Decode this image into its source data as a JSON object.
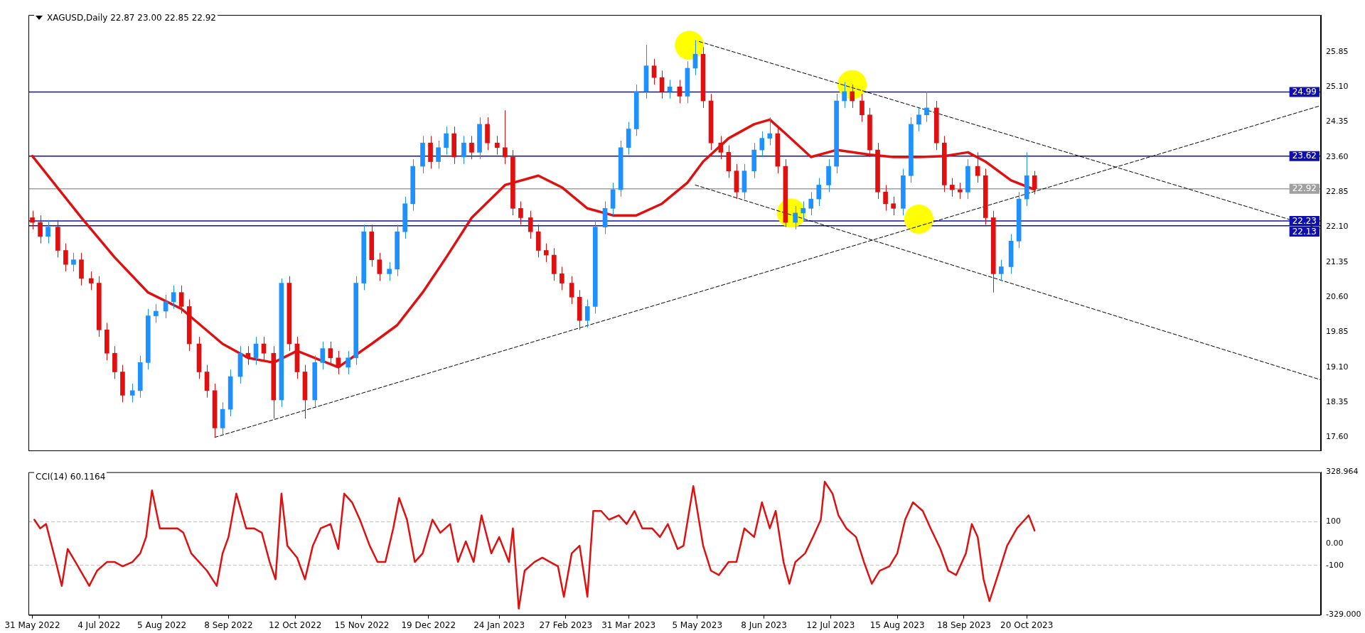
{
  "chart_data": [
    {
      "type": "candlestick",
      "title": "XAGUSD,Daily 22.87 23.00 22.85 22.92",
      "xlim": [
        "2022-05-29",
        "2024-03-18"
      ],
      "ylim": [
        17.32,
        26.64
      ],
      "tick_labels": "y",
      "yticks": [
        {
          "value": 17.6,
          "label": "17.60"
        },
        {
          "value": 18.35,
          "label": "18.35"
        },
        {
          "value": 19.1,
          "label": "19.10"
        },
        {
          "value": 19.85,
          "label": "19.85"
        },
        {
          "value": 20.6,
          "label": "20.60"
        },
        {
          "value": 21.35,
          "label": "21.35"
        },
        {
          "value": 22.1,
          "label": "22.10"
        },
        {
          "value": 22.85,
          "label": "22.85"
        },
        {
          "value": 23.6,
          "label": "23.60"
        },
        {
          "value": 24.35,
          "label": "24.35"
        },
        {
          "value": 25.1,
          "label": "25.10"
        },
        {
          "value": 25.85,
          "label": "25.85"
        }
      ],
      "ref_lines": [
        {
          "axis": "y",
          "value": 24.99,
          "label": "24.99",
          "color": "#1010b0"
        },
        {
          "axis": "y",
          "value": 23.62,
          "label": "23.62",
          "color": "#1010b0"
        },
        {
          "axis": "y",
          "value": 22.92,
          "label": "22.92",
          "color": "#a0a0a0"
        },
        {
          "axis": "y",
          "value": 22.23,
          "label": "22.23",
          "color": "#1010b0"
        },
        {
          "axis": "y",
          "value": 22.13,
          "label": "22.13",
          "color": "#1010b0"
        }
      ],
      "series": [
        {
          "type": "scatter",
          "color": "#ffff00",
          "marker": "circle",
          "x": [
            "2023-05-01",
            "2023-07-23",
            "2023-06-22",
            "2023-08-26"
          ],
          "values": [
            25.99,
            25.15,
            22.4,
            22.27
          ]
        },
        {
          "type": "line",
          "color": "#000000",
          "line_style": "dashed",
          "x": [
            "2022-09-01",
            "2024-03-18"
          ],
          "values": [
            17.6,
            24.7
          ]
        },
        {
          "type": "line",
          "color": "#000000",
          "line_style": "dashed",
          "x": [
            "2023-05-06",
            "2024-03-18"
          ],
          "values": [
            26.07,
            22.06
          ]
        },
        {
          "type": "line",
          "color": "#000000",
          "line_style": "dashed",
          "x": [
            "2023-05-04",
            "2024-03-18"
          ],
          "values": [
            23.0,
            18.83
          ]
        },
        {
          "type": "line",
          "color": "#e01010",
          "line_style": "solid",
          "x": [
            "2022-05-31",
            "2022-06-25",
            "2022-07-12",
            "2022-07-29",
            "2022-08-15",
            "2022-09-05",
            "2022-09-18",
            "2022-10-01",
            "2022-10-13",
            "2022-10-22",
            "2022-11-03",
            "2022-11-20",
            "2022-12-03",
            "2022-12-16",
            "2022-12-28",
            "2023-01-10",
            "2023-01-27",
            "2023-02-13",
            "2023-02-25",
            "2023-03-10",
            "2023-03-23",
            "2023-04-04",
            "2023-04-17",
            "2023-04-30",
            "2023-05-08",
            "2023-05-21",
            "2023-06-03",
            "2023-06-11",
            "2023-06-19",
            "2023-07-02",
            "2023-07-15",
            "2023-08-01",
            "2023-08-13",
            "2023-08-26",
            "2023-09-08",
            "2023-09-20",
            "2023-09-29",
            "2023-10-12",
            "2023-10-24"
          ],
          "values": [
            23.62,
            22.3,
            21.45,
            20.7,
            20.35,
            19.6,
            19.3,
            19.2,
            19.45,
            19.3,
            19.1,
            19.6,
            20.0,
            20.7,
            21.45,
            22.3,
            23.0,
            23.2,
            22.95,
            22.5,
            22.35,
            22.35,
            22.6,
            23.05,
            23.5,
            24.0,
            24.3,
            24.4,
            24.1,
            23.6,
            23.75,
            23.65,
            23.6,
            23.6,
            23.62,
            23.7,
            23.5,
            23.1,
            22.9
          ]
        },
        {
          "x": [
            "2022-05-31",
            "2022-06-04",
            "2022-06-08",
            "2022-06-13",
            "2022-06-17",
            "2022-06-21",
            "2022-06-25",
            "2022-06-30",
            "2022-07-04",
            "2022-07-08",
            "2022-07-12",
            "2022-07-16",
            "2022-07-21",
            "2022-07-25",
            "2022-07-29",
            "2022-08-02",
            "2022-08-07",
            "2022-08-11",
            "2022-08-15",
            "2022-08-19",
            "2022-08-24",
            "2022-08-28",
            "2022-09-01",
            "2022-09-05",
            "2022-09-09",
            "2022-09-14",
            "2022-09-18",
            "2022-09-22",
            "2022-09-26",
            "2022-10-01",
            "2022-10-05",
            "2022-10-09",
            "2022-10-13",
            "2022-10-17",
            "2022-10-22",
            "2022-10-26",
            "2022-10-30",
            "2022-11-03",
            "2022-11-08",
            "2022-11-12",
            "2022-11-16",
            "2022-11-20",
            "2022-11-24",
            "2022-11-29",
            "2022-12-03",
            "2022-12-07",
            "2022-12-11",
            "2022-12-16",
            "2022-12-20",
            "2022-12-24",
            "2022-12-28",
            "2023-01-01",
            "2023-01-06",
            "2023-01-10",
            "2023-01-14",
            "2023-01-18",
            "2023-01-23",
            "2023-01-27",
            "2023-01-31",
            "2023-02-04",
            "2023-02-09",
            "2023-02-13",
            "2023-02-17",
            "2023-02-21",
            "2023-02-25",
            "2023-03-02",
            "2023-03-06",
            "2023-03-10",
            "2023-03-14",
            "2023-03-19",
            "2023-03-23",
            "2023-03-27",
            "2023-03-31",
            "2023-04-04",
            "2023-04-09",
            "2023-04-13",
            "2023-04-17",
            "2023-04-21",
            "2023-04-26",
            "2023-04-30",
            "2023-05-04",
            "2023-05-08",
            "2023-05-12",
            "2023-05-17",
            "2023-05-21",
            "2023-05-25",
            "2023-05-29",
            "2023-06-03",
            "2023-06-07",
            "2023-06-11",
            "2023-06-15",
            "2023-06-19",
            "2023-06-24",
            "2023-06-28",
            "2023-07-02",
            "2023-07-06",
            "2023-07-11",
            "2023-07-15",
            "2023-07-19",
            "2023-07-23",
            "2023-07-28",
            "2023-08-01",
            "2023-08-05",
            "2023-08-09",
            "2023-08-13",
            "2023-08-18",
            "2023-08-22",
            "2023-08-26",
            "2023-08-30",
            "2023-09-04",
            "2023-09-08",
            "2023-09-12",
            "2023-09-16",
            "2023-09-20",
            "2023-09-25",
            "2023-09-29",
            "2023-10-03",
            "2023-10-07",
            "2023-10-12",
            "2023-10-16",
            "2023-10-20",
            "2023-10-24"
          ],
          "ohlc": [
            [
              22.3,
              22.45,
              22.05,
              22.2
            ],
            [
              22.2,
              22.35,
              21.75,
              21.9
            ],
            [
              21.9,
              22.25,
              21.75,
              22.1
            ],
            [
              22.1,
              22.25,
              21.45,
              21.6
            ],
            [
              21.6,
              21.75,
              21.15,
              21.3
            ],
            [
              21.3,
              21.55,
              21.15,
              21.4
            ],
            [
              21.4,
              21.55,
              20.85,
              21.0
            ],
            [
              21.0,
              21.15,
              20.75,
              20.9
            ],
            [
              20.9,
              21.05,
              19.75,
              19.9
            ],
            [
              19.9,
              20.05,
              19.25,
              19.4
            ],
            [
              19.4,
              19.55,
              18.85,
              19.0
            ],
            [
              19.0,
              19.15,
              18.35,
              18.5
            ],
            [
              18.5,
              18.75,
              18.35,
              18.6
            ],
            [
              18.6,
              19.35,
              18.45,
              19.2
            ],
            [
              19.2,
              20.35,
              19.05,
              20.2
            ],
            [
              20.2,
              20.45,
              20.05,
              20.3
            ],
            [
              20.3,
              20.65,
              20.15,
              20.5
            ],
            [
              20.5,
              20.85,
              20.35,
              20.7
            ],
            [
              20.7,
              20.85,
              20.25,
              20.4
            ],
            [
              20.4,
              20.55,
              19.45,
              19.6
            ],
            [
              19.6,
              19.75,
              18.85,
              19.0
            ],
            [
              19.0,
              19.15,
              18.45,
              18.6
            ],
            [
              18.6,
              18.75,
              17.6,
              17.8
            ],
            [
              17.8,
              18.35,
              17.65,
              18.2
            ],
            [
              18.2,
              19.05,
              18.05,
              18.9
            ],
            [
              18.9,
              19.55,
              18.75,
              19.4
            ],
            [
              19.4,
              19.55,
              19.15,
              19.3
            ],
            [
              19.3,
              19.75,
              19.15,
              19.6
            ],
            [
              19.6,
              19.75,
              19.25,
              19.4
            ],
            [
              19.4,
              19.55,
              18.0,
              18.4
            ],
            [
              18.4,
              21.0,
              18.25,
              20.9
            ],
            [
              20.9,
              21.05,
              19.45,
              19.6
            ],
            [
              19.6,
              19.75,
              18.85,
              19.0
            ],
            [
              19.0,
              19.15,
              18.0,
              18.4
            ],
            [
              18.4,
              19.35,
              18.25,
              19.2
            ],
            [
              19.2,
              19.65,
              19.05,
              19.5
            ],
            [
              19.5,
              19.65,
              19.15,
              19.3
            ],
            [
              19.3,
              19.45,
              18.95,
              19.1
            ],
            [
              19.1,
              19.45,
              18.95,
              19.3
            ],
            [
              19.3,
              21.05,
              19.15,
              20.9
            ],
            [
              20.9,
              22.15,
              20.75,
              22.0
            ],
            [
              22.0,
              22.15,
              21.25,
              21.4
            ],
            [
              21.4,
              21.55,
              20.95,
              21.1
            ],
            [
              21.1,
              21.35,
              20.95,
              21.2
            ],
            [
              21.2,
              22.15,
              21.05,
              22.0
            ],
            [
              22.0,
              22.75,
              21.85,
              22.6
            ],
            [
              22.6,
              23.55,
              22.45,
              23.4
            ],
            [
              23.4,
              24.05,
              23.25,
              23.9
            ],
            [
              23.9,
              24.05,
              23.35,
              23.5
            ],
            [
              23.5,
              23.95,
              23.35,
              23.8
            ],
            [
              23.8,
              24.25,
              23.65,
              24.1
            ],
            [
              24.1,
              24.25,
              23.45,
              23.6
            ],
            [
              23.6,
              24.05,
              23.45,
              23.9
            ],
            [
              23.9,
              24.05,
              23.55,
              23.7
            ],
            [
              23.7,
              24.45,
              23.55,
              24.3
            ],
            [
              24.3,
              24.45,
              23.75,
              23.9
            ],
            [
              23.9,
              24.05,
              23.65,
              23.8
            ],
            [
              23.8,
              24.6,
              23.45,
              23.6
            ],
            [
              23.6,
              23.75,
              22.35,
              22.5
            ],
            [
              22.5,
              22.65,
              22.15,
              22.3
            ],
            [
              22.3,
              22.45,
              21.85,
              22.0
            ],
            [
              22.0,
              22.15,
              21.45,
              21.6
            ],
            [
              21.6,
              21.75,
              21.35,
              21.5
            ],
            [
              21.5,
              21.65,
              20.95,
              21.1
            ],
            [
              21.1,
              21.25,
              20.75,
              20.9
            ],
            [
              20.9,
              21.05,
              20.45,
              20.6
            ],
            [
              20.6,
              20.75,
              19.9,
              20.1
            ],
            [
              20.1,
              20.55,
              19.95,
              20.4
            ],
            [
              20.4,
              22.25,
              20.25,
              22.1
            ],
            [
              22.1,
              22.65,
              21.95,
              22.5
            ],
            [
              22.5,
              23.05,
              22.35,
              22.9
            ],
            [
              22.9,
              23.95,
              22.75,
              23.8
            ],
            [
              23.8,
              24.35,
              23.65,
              24.2
            ],
            [
              24.2,
              25.15,
              24.05,
              25.0
            ],
            [
              25.0,
              26.0,
              24.85,
              25.55
            ],
            [
              25.55,
              25.7,
              25.15,
              25.3
            ],
            [
              25.3,
              25.45,
              24.85,
              25.0
            ],
            [
              25.0,
              25.25,
              24.85,
              25.1
            ],
            [
              25.1,
              25.25,
              24.75,
              24.9
            ],
            [
              24.9,
              25.65,
              24.75,
              25.5
            ],
            [
              25.5,
              26.1,
              25.35,
              25.8
            ],
            [
              25.8,
              25.95,
              24.65,
              24.8
            ],
            [
              24.8,
              24.95,
              23.75,
              23.9
            ],
            [
              23.9,
              24.05,
              23.55,
              23.7
            ],
            [
              23.7,
              23.85,
              23.15,
              23.3
            ],
            [
              23.3,
              23.45,
              22.7,
              22.85
            ],
            [
              22.85,
              23.45,
              22.7,
              23.3
            ],
            [
              23.3,
              23.9,
              23.15,
              23.75
            ],
            [
              23.75,
              24.15,
              23.6,
              24.0
            ],
            [
              24.0,
              24.45,
              23.85,
              24.1
            ],
            [
              24.1,
              24.25,
              23.25,
              23.4
            ],
            [
              23.4,
              23.55,
              22.1,
              22.2
            ],
            [
              22.2,
              22.55,
              22.05,
              22.4
            ],
            [
              22.4,
              22.65,
              22.25,
              22.5
            ],
            [
              22.5,
              22.85,
              22.35,
              22.7
            ],
            [
              22.7,
              23.15,
              22.55,
              23.0
            ],
            [
              23.0,
              23.55,
              22.85,
              23.4
            ],
            [
              23.4,
              24.95,
              23.25,
              24.8
            ],
            [
              24.8,
              25.2,
              24.65,
              25.0
            ],
            [
              25.0,
              25.15,
              24.65,
              24.8
            ],
            [
              24.8,
              24.95,
              24.35,
              24.5
            ],
            [
              24.5,
              24.65,
              23.6,
              23.75
            ],
            [
              23.75,
              23.9,
              22.7,
              22.85
            ],
            [
              22.85,
              23.0,
              22.45,
              22.6
            ],
            [
              22.6,
              22.75,
              22.35,
              22.5
            ],
            [
              22.5,
              23.35,
              22.35,
              23.2
            ],
            [
              23.2,
              24.45,
              23.05,
              24.3
            ],
            [
              24.3,
              24.65,
              24.15,
              24.5
            ],
            [
              24.5,
              25.0,
              24.35,
              24.65
            ],
            [
              24.65,
              24.8,
              23.75,
              23.9
            ],
            [
              23.9,
              24.05,
              22.85,
              23.0
            ],
            [
              23.0,
              23.15,
              22.75,
              22.9
            ],
            [
              22.9,
              23.05,
              22.7,
              22.85
            ],
            [
              22.85,
              23.55,
              22.7,
              23.4
            ],
            [
              23.4,
              23.7,
              23.05,
              23.2
            ],
            [
              23.2,
              23.35,
              22.15,
              22.3
            ],
            [
              22.3,
              22.45,
              20.7,
              21.1
            ],
            [
              21.1,
              21.4,
              20.95,
              21.25
            ],
            [
              21.25,
              21.95,
              21.1,
              21.8
            ],
            [
              21.8,
              22.85,
              21.65,
              22.7
            ],
            [
              22.7,
              23.7,
              22.55,
              23.2
            ],
            [
              23.2,
              23.3,
              22.8,
              22.92
            ]
          ],
          "colors": [
            "#e01010",
            "#e01010",
            "#1e90ff",
            "#e01010",
            "#e01010",
            "#1e90ff",
            "#e01010",
            "#e01010",
            "#e01010",
            "#e01010",
            "#e01010",
            "#e01010",
            "#1e90ff",
            "#1e90ff",
            "#1e90ff",
            "#1e90ff",
            "#1e90ff",
            "#1e90ff",
            "#e01010",
            "#e01010",
            "#e01010",
            "#e01010",
            "#e01010",
            "#1e90ff",
            "#1e90ff",
            "#1e90ff",
            "#e01010",
            "#1e90ff",
            "#e01010",
            "#e01010",
            "#1e90ff",
            "#e01010",
            "#e01010",
            "#e01010",
            "#1e90ff",
            "#1e90ff",
            "#e01010",
            "#e01010",
            "#1e90ff",
            "#1e90ff",
            "#1e90ff",
            "#e01010",
            "#e01010",
            "#1e90ff",
            "#1e90ff",
            "#1e90ff",
            "#1e90ff",
            "#1e90ff",
            "#e01010",
            "#1e90ff",
            "#1e90ff",
            "#e01010",
            "#1e90ff",
            "#e01010",
            "#1e90ff",
            "#e01010",
            "#e01010",
            "#e01010",
            "#e01010",
            "#e01010",
            "#e01010",
            "#e01010",
            "#e01010",
            "#e01010",
            "#e01010",
            "#e01010",
            "#e01010",
            "#1e90ff",
            "#1e90ff",
            "#1e90ff",
            "#1e90ff",
            "#1e90ff",
            "#1e90ff",
            "#1e90ff",
            "#1e90ff",
            "#e01010",
            "#e01010",
            "#1e90ff",
            "#e01010",
            "#1e90ff",
            "#1e90ff",
            "#e01010",
            "#e01010",
            "#e01010",
            "#e01010",
            "#e01010",
            "#1e90ff",
            "#1e90ff",
            "#1e90ff",
            "#1e90ff",
            "#e01010",
            "#e01010",
            "#1e90ff",
            "#1e90ff",
            "#1e90ff",
            "#1e90ff",
            "#1e90ff",
            "#1e90ff",
            "#1e90ff",
            "#e01010",
            "#e01010",
            "#e01010",
            "#e01010",
            "#e01010",
            "#e01010",
            "#1e90ff",
            "#1e90ff",
            "#1e90ff",
            "#1e90ff",
            "#e01010",
            "#e01010",
            "#e01010",
            "#e01010",
            "#1e90ff",
            "#e01010",
            "#e01010",
            "#e01010",
            "#1e90ff",
            "#1e90ff",
            "#1e90ff",
            "#1e90ff",
            "#e01010"
          ]
        }
      ]
    },
    {
      "type": "line",
      "title": "CCI(14) 60.1164",
      "xlim": [
        "2022-05-29",
        "2024-03-18"
      ],
      "ylim": [
        -329,
        328.964
      ],
      "xticks": [
        {
          "value": "2022-05-31",
          "label": "31 May 2022"
        },
        {
          "value": "2022-07-04",
          "label": "4 Jul 2022"
        },
        {
          "value": "2022-08-05",
          "label": "5 Aug 2022"
        },
        {
          "value": "2022-09-08",
          "label": "8 Sep 2022"
        },
        {
          "value": "2022-10-12",
          "label": "12 Oct 2022"
        },
        {
          "value": "2022-11-15",
          "label": "15 Nov 2022"
        },
        {
          "value": "2022-12-19",
          "label": "19 Dec 2022"
        },
        {
          "value": "2023-01-24",
          "label": "24 Jan 2023"
        },
        {
          "value": "2023-02-27",
          "label": "27 Feb 2023"
        },
        {
          "value": "2023-03-31",
          "label": "31 Mar 2023"
        },
        {
          "value": "2023-05-05",
          "label": "5 May 2023"
        },
        {
          "value": "2023-06-08",
          "label": "8 Jun 2023"
        },
        {
          "value": "2023-07-12",
          "label": "12 Jul 2023"
        },
        {
          "value": "2023-08-15",
          "label": "15 Aug 2023"
        },
        {
          "value": "2023-09-18",
          "label": "18 Sep 2023"
        },
        {
          "value": "2023-10-20",
          "label": "20 Oct 2023"
        }
      ],
      "yticks": [
        {
          "value": -329,
          "label": "-329.000"
        },
        {
          "value": -100,
          "label": "-100"
        },
        {
          "value": 0,
          "label": "0.00"
        },
        {
          "value": 100,
          "label": "100"
        },
        {
          "value": 328.964,
          "label": "328.964"
        }
      ],
      "ref_lines": [
        {
          "axis": "y",
          "value": 100,
          "color": "#c0c0c0",
          "line_style": "dashed"
        },
        {
          "axis": "y",
          "value": -100,
          "color": "#c0c0c0",
          "line_style": "dashed"
        }
      ],
      "series": [
        {
          "color": "#e01010",
          "line_style": "solid",
          "x": [
            "2022-06-01",
            "2022-06-04",
            "2022-06-07",
            "2022-06-12",
            "2022-06-15",
            "2022-06-18",
            "2022-06-22",
            "2022-06-29",
            "2022-07-03",
            "2022-07-08",
            "2022-07-12",
            "2022-07-16",
            "2022-07-21",
            "2022-07-25",
            "2022-07-28",
            "2022-07-31",
            "2022-08-04",
            "2022-08-09",
            "2022-08-13",
            "2022-08-16",
            "2022-08-20",
            "2022-08-24",
            "2022-08-28",
            "2022-09-02",
            "2022-09-05",
            "2022-09-08",
            "2022-09-12",
            "2022-09-17",
            "2022-09-21",
            "2022-09-25",
            "2022-09-29",
            "2022-10-02",
            "2022-10-05",
            "2022-10-08",
            "2022-10-13",
            "2022-10-17",
            "2022-10-21",
            "2022-10-25",
            "2022-10-30",
            "2022-11-03",
            "2022-11-06",
            "2022-11-10",
            "2022-11-14",
            "2022-11-19",
            "2022-11-23",
            "2022-11-27",
            "2022-12-01",
            "2022-12-04",
            "2022-12-08",
            "2022-12-12",
            "2022-12-16",
            "2022-12-21",
            "2022-12-25",
            "2022-12-30",
            "2023-01-03",
            "2023-01-07",
            "2023-01-11",
            "2023-01-15",
            "2023-01-20",
            "2023-01-24",
            "2023-01-29",
            "2023-01-31",
            "2023-02-03",
            "2023-02-06",
            "2023-02-11",
            "2023-02-15",
            "2023-02-19",
            "2023-02-23",
            "2023-02-26",
            "2023-03-02",
            "2023-03-06",
            "2023-03-10",
            "2023-03-13",
            "2023-03-17",
            "2023-03-21",
            "2023-03-26",
            "2023-03-30",
            "2023-04-03",
            "2023-04-07",
            "2023-04-12",
            "2023-04-16",
            "2023-04-20",
            "2023-04-25",
            "2023-04-28",
            "2023-05-03",
            "2023-05-08",
            "2023-05-12",
            "2023-05-16",
            "2023-05-21",
            "2023-05-25",
            "2023-05-29",
            "2023-06-03",
            "2023-06-07",
            "2023-06-11",
            "2023-06-14",
            "2023-06-18",
            "2023-06-21",
            "2023-06-24",
            "2023-06-29",
            "2023-07-03",
            "2023-07-07",
            "2023-07-09",
            "2023-07-13",
            "2023-07-16",
            "2023-07-20",
            "2023-07-25",
            "2023-07-29",
            "2023-08-02",
            "2023-08-06",
            "2023-08-11",
            "2023-08-15",
            "2023-08-19",
            "2023-08-23",
            "2023-08-28",
            "2023-09-01",
            "2023-09-06",
            "2023-09-10",
            "2023-09-14",
            "2023-09-19",
            "2023-09-22",
            "2023-09-25",
            "2023-09-28",
            "2023-10-01",
            "2023-10-06",
            "2023-10-10",
            "2023-10-15",
            "2023-10-19",
            "2023-10-21",
            "2023-10-24"
          ],
          "values": [
            110,
            70,
            90,
            -85,
            -195,
            -25,
            -85,
            -195,
            -125,
            -85,
            -85,
            -105,
            -85,
            -45,
            30,
            245,
            70,
            70,
            70,
            50,
            -45,
            -85,
            -125,
            -195,
            -45,
            30,
            230,
            70,
            70,
            50,
            -85,
            -165,
            230,
            -10,
            -65,
            -165,
            -10,
            70,
            90,
            -25,
            230,
            190,
            110,
            -10,
            -85,
            -85,
            70,
            210,
            110,
            -85,
            -45,
            110,
            50,
            90,
            -85,
            10,
            -85,
            130,
            -45,
            30,
            -85,
            70,
            -300,
            -125,
            -85,
            -65,
            -85,
            -105,
            -245,
            -45,
            -10,
            -245,
            150,
            150,
            110,
            130,
            90,
            150,
            70,
            70,
            30,
            90,
            -25,
            -10,
            265,
            -10,
            -125,
            -145,
            -85,
            -85,
            70,
            30,
            190,
            70,
            150,
            -85,
            -185,
            -85,
            -45,
            30,
            110,
            285,
            230,
            130,
            70,
            30,
            -85,
            -185,
            -125,
            -105,
            -45,
            110,
            190,
            150,
            70,
            -25,
            -125,
            -145,
            -45,
            90,
            30,
            -165,
            -265,
            -125,
            -10,
            70,
            110,
            130,
            60
          ]
        }
      ]
    }
  ]
}
